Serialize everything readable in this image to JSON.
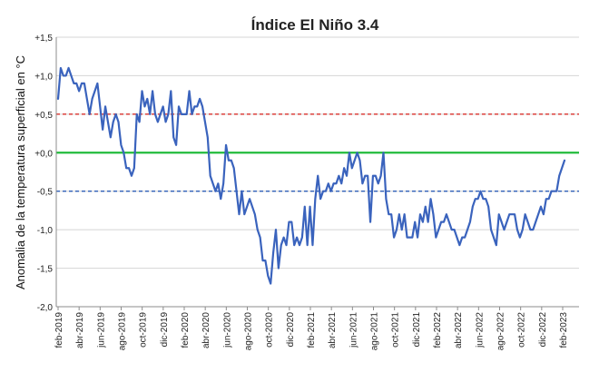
{
  "chart_data": {
    "type": "line",
    "title": "Índice El Niño 3.4",
    "ylabel": "Anomalia de la temperatura superficial en °C",
    "xlabel": "",
    "ylim": [
      -2.0,
      1.5
    ],
    "yticks": [
      1.5,
      1.0,
      0.5,
      0.0,
      -0.5,
      -1.0,
      -1.5,
      -2.0
    ],
    "ytick_labels": [
      "+1,5",
      "+1,0",
      "+0,5",
      "+0,0",
      "-0,5",
      "-1,0",
      "-1,5",
      "-2,0"
    ],
    "x_tick_labels": [
      "feb-2019",
      "abr-2019",
      "jun-2019",
      "ago-2019",
      "oct-2019",
      "dic-2019",
      "feb-2020",
      "abr-2020",
      "jun-2020",
      "ago-2020",
      "oct-2020",
      "dic-2020",
      "feb-2021",
      "abr-2021",
      "jun-2021",
      "ago-2021",
      "oct-2021",
      "dic-2021",
      "feb-2022",
      "abr-2022",
      "jun-2022",
      "ago-2022",
      "oct-2022",
      "dic-2022",
      "feb-2023"
    ],
    "grid": "horizontal",
    "legend": "none",
    "reference_lines": [
      {
        "y": 0.5,
        "color": "#d9302b",
        "style": "dashed"
      },
      {
        "y": 0.0,
        "color": "#22bb3c",
        "style": "solid"
      },
      {
        "y": -0.5,
        "color": "#2e5fb8",
        "style": "dashed"
      }
    ],
    "series": [
      {
        "color": "#3a63bd",
        "values": [
          0.7,
          1.1,
          1.0,
          1.0,
          1.1,
          1.0,
          0.9,
          0.9,
          0.8,
          0.9,
          0.9,
          0.7,
          0.5,
          0.7,
          0.8,
          0.9,
          0.6,
          0.3,
          0.6,
          0.4,
          0.2,
          0.4,
          0.5,
          0.4,
          0.1,
          0.0,
          -0.2,
          -0.2,
          -0.3,
          -0.2,
          0.5,
          0.4,
          0.8,
          0.6,
          0.7,
          0.5,
          0.8,
          0.5,
          0.4,
          0.5,
          0.6,
          0.4,
          0.5,
          0.8,
          0.2,
          0.1,
          0.6,
          0.5,
          0.5,
          0.5,
          0.8,
          0.5,
          0.6,
          0.6,
          0.7,
          0.6,
          0.4,
          0.2,
          -0.3,
          -0.4,
          -0.5,
          -0.4,
          -0.6,
          -0.4,
          0.1,
          -0.1,
          -0.1,
          -0.2,
          -0.5,
          -0.8,
          -0.5,
          -0.8,
          -0.7,
          -0.6,
          -0.7,
          -0.8,
          -1.0,
          -1.1,
          -1.4,
          -1.4,
          -1.6,
          -1.7,
          -1.3,
          -1.0,
          -1.5,
          -1.2,
          -1.1,
          -1.2,
          -0.9,
          -0.9,
          -1.2,
          -1.1,
          -1.2,
          -1.1,
          -0.7,
          -1.2,
          -0.7,
          -1.2,
          -0.6,
          -0.3,
          -0.6,
          -0.5,
          -0.5,
          -0.4,
          -0.5,
          -0.4,
          -0.4,
          -0.3,
          -0.4,
          -0.2,
          -0.3,
          0.0,
          -0.2,
          -0.1,
          0.0,
          -0.1,
          -0.4,
          -0.3,
          -0.3,
          -0.9,
          -0.3,
          -0.3,
          -0.4,
          -0.3,
          0.0,
          -0.6,
          -0.8,
          -0.8,
          -1.1,
          -1.0,
          -0.8,
          -1.0,
          -0.8,
          -1.1,
          -1.1,
          -1.1,
          -0.9,
          -1.1,
          -0.8,
          -0.9,
          -0.7,
          -0.9,
          -0.6,
          -0.8,
          -1.1,
          -1.0,
          -0.9,
          -0.9,
          -0.8,
          -0.9,
          -1.0,
          -1.0,
          -1.1,
          -1.2,
          -1.1,
          -1.1,
          -1.0,
          -0.9,
          -0.7,
          -0.6,
          -0.6,
          -0.5,
          -0.6,
          -0.6,
          -0.7,
          -1.0,
          -1.1,
          -1.2,
          -0.8,
          -0.9,
          -1.0,
          -0.9,
          -0.8,
          -0.8,
          -0.8,
          -1.0,
          -1.1,
          -1.0,
          -0.8,
          -0.9,
          -1.0,
          -1.0,
          -0.9,
          -0.8,
          -0.7,
          -0.8,
          -0.6,
          -0.6,
          -0.5,
          -0.5,
          -0.5,
          -0.3,
          -0.2,
          -0.1
        ]
      }
    ]
  }
}
